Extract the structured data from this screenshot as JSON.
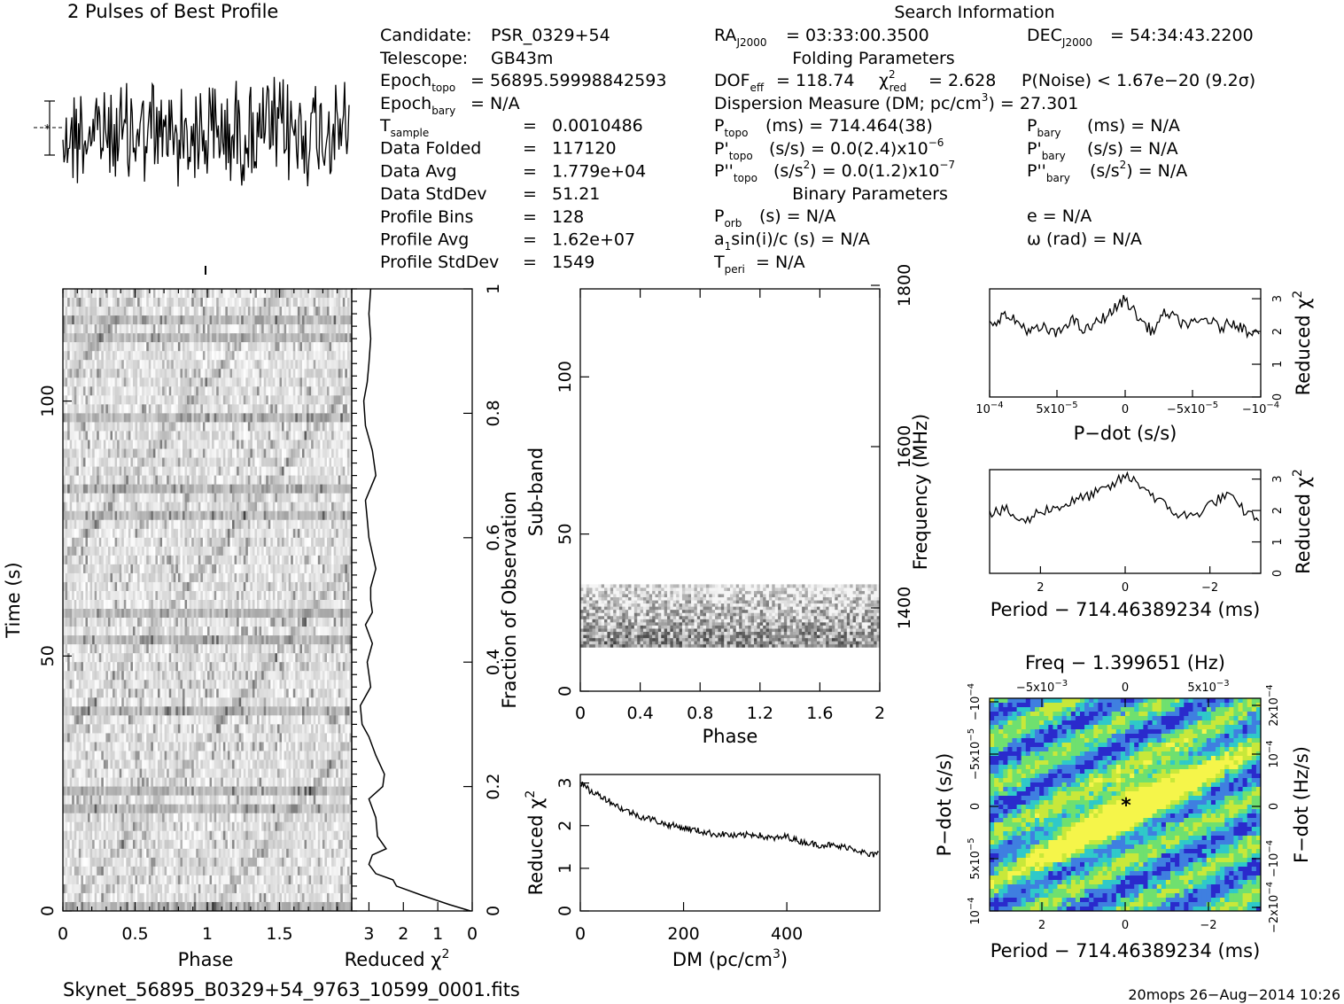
{
  "profile": {
    "title": "2 Pulses of Best Profile"
  },
  "candidate_info": {
    "candidate_label": "Candidate:",
    "candidate": "PSR_0329+54",
    "telescope_label": "Telescope:",
    "telescope": "GB43m",
    "epoch_topo_label": "Epoch",
    "epoch_topo_sub": "topo",
    "epoch_topo": "= 56895.59998842593",
    "epoch_bary_label": "Epoch",
    "epoch_bary_sub": "bary",
    "epoch_bary": "= N/A",
    "rows": [
      {
        "label": "T",
        "sub": "sample",
        "eq": "=",
        "value": "0.0010486"
      },
      {
        "label": "Data Folded",
        "sub": "",
        "eq": "=",
        "value": "117120"
      },
      {
        "label": "Data Avg",
        "sub": "",
        "eq": "=",
        "value": "1.779e+04"
      },
      {
        "label": "Data StdDev",
        "sub": "",
        "eq": "=",
        "value": "51.21"
      },
      {
        "label": "Profile Bins",
        "sub": "",
        "eq": "=",
        "value": "128"
      },
      {
        "label": "Profile Avg",
        "sub": "",
        "eq": "=",
        "value": "1.62e+07"
      },
      {
        "label": "Profile StdDev",
        "sub": "",
        "eq": "=",
        "value": "1549"
      }
    ]
  },
  "search_info": {
    "title": "Search Information",
    "ra_label": "RA",
    "ra_sub": "J2000",
    "ra": "= 03:33:00.3500",
    "dec_label": "DEC",
    "dec_sub": "J2000",
    "dec": "= 54:34:43.2200",
    "folding_title": "Folding Parameters",
    "dof_label": "DOF",
    "dof_sub": "eff",
    "dof": "= 118.74",
    "chi_label": "χ",
    "chi_sup": "2",
    "chi_sub": "red",
    "chi": "= 2.628",
    "pnoise": "P(Noise) < 1.67e−20  (9.2σ)",
    "dm_line_a": "Dispersion Measure (DM; pc/cm",
    "dm_line_sup": "3",
    "dm_line_b": ") = 27.301",
    "p_topo_label": "P",
    "p_topo_sub": "topo",
    "p_topo": "(ms) =  714.464(38)",
    "p_bary_label": "P",
    "p_bary_sub": "bary",
    "p_bary": "(ms) = N/A",
    "pd_topo_label": "P'",
    "pd_topo_sub": "topo",
    "pd_topo": "(s/s) = 0.0(2.4)x10",
    "pd_topo_exp": "−6",
    "pd_bary_label": "P'",
    "pd_bary_sub": "bary",
    "pd_bary": "(s/s) = N/A",
    "pdd_topo_label": "P''",
    "pdd_topo_sub": "topo",
    "pdd_topo_a": "(s/s",
    "pdd_topo_sup": "2",
    "pdd_topo_b": ") = 0.0(1.2)x10",
    "pdd_topo_exp": "−7",
    "pdd_bary_label": "P''",
    "pdd_bary_sub": "bary",
    "pdd_bary_a": "(s/s",
    "pdd_bary_sup": "2",
    "pdd_bary_b": ") = N/A",
    "binary_title": "Binary Parameters",
    "porb_label": "P",
    "porb_sub": "orb",
    "porb": "(s) = N/A",
    "e": "e = N/A",
    "a1_a": "a",
    "a1_sub": "1",
    "a1_b": "sin(i)/c (s) = N/A",
    "omega": "ω (rad) = N/A",
    "tperi_label": "T",
    "tperi_sub": "peri",
    "tperi": "= N/A"
  },
  "footer": {
    "filename": "Skynet_56895_B0329+54_9763_10599_0001.fits",
    "stamp": "20mops 26−Aug−2014 10:26"
  },
  "chart_data": [
    {
      "id": "time-phase",
      "type": "heatmap",
      "xlabel": "Phase",
      "ylabel": "Time (s)",
      "xlim": [
        0,
        2
      ],
      "ylim": [
        0,
        122
      ],
      "xticks": [
        "0",
        "0.5",
        "1",
        "1.5"
      ],
      "yticks": [
        "0",
        "50",
        "100"
      ],
      "colors": "greyscale"
    },
    {
      "id": "time-chi",
      "type": "line",
      "xlabel": "Reduced χ",
      "xlabel_sup": "2",
      "ylabel": "Fraction of Observation",
      "xlim": [
        3.5,
        0
      ],
      "ylim": [
        0,
        1
      ],
      "xticks": [
        "3",
        "2",
        "1",
        "0"
      ],
      "yticks": [
        "0",
        "0.2",
        "0.4",
        "0.6",
        "0.8",
        "1"
      ],
      "x": [
        0.05,
        0.65,
        1.45,
        2.2,
        2.3,
        2.8,
        3.0,
        2.9,
        2.5,
        2.75,
        2.8,
        3.0,
        2.6,
        2.55,
        2.8,
        3.0,
        3.2,
        3.25,
        2.95,
        3.05,
        2.9,
        3.1,
        2.9,
        2.95,
        2.95,
        2.8,
        3.0,
        3.05,
        3.1,
        2.8,
        2.9,
        3.1,
        3.15,
        3.05,
        3.0,
        2.95,
        3.0,
        2.95
      ],
      "y": [
        0.0,
        0.01,
        0.025,
        0.04,
        0.05,
        0.06,
        0.075,
        0.09,
        0.1,
        0.12,
        0.15,
        0.18,
        0.2,
        0.22,
        0.25,
        0.28,
        0.3,
        0.33,
        0.36,
        0.4,
        0.43,
        0.46,
        0.48,
        0.5,
        0.52,
        0.55,
        0.6,
        0.63,
        0.66,
        0.7,
        0.74,
        0.78,
        0.82,
        0.85,
        0.88,
        0.92,
        0.96,
        1.0
      ]
    },
    {
      "id": "subband",
      "type": "heatmap",
      "xlabel": "Phase",
      "ylabel": "Sub-band",
      "y2label": "Frequency (MHz)",
      "xlim": [
        0,
        2
      ],
      "ylim": [
        0,
        128
      ],
      "xticks": [
        "0",
        "0.4",
        "0.8",
        "1.2",
        "1.6",
        "2"
      ],
      "yticks": [
        "0",
        "50",
        "100"
      ],
      "y2ticks": [
        "1400",
        "1600",
        "1800"
      ],
      "band_range": [
        14,
        34
      ],
      "colors": "greyscale"
    },
    {
      "id": "dm-chi",
      "type": "line",
      "xlabel": "DM (pc/cm",
      "xlabel_sup": "3",
      "ylabel": "Reduced χ",
      "ylabel_sup": "2",
      "xlim": [
        0,
        580
      ],
      "ylim": [
        0,
        3.2
      ],
      "xticks": [
        "0",
        "200",
        "400"
      ],
      "yticks": [
        "0",
        "1",
        "2",
        "3"
      ],
      "x": [
        0,
        20,
        40,
        60,
        80,
        100,
        120,
        140,
        160,
        180,
        200,
        220,
        240,
        260,
        280,
        300,
        320,
        340,
        360,
        380,
        400,
        420,
        440,
        460,
        480,
        500,
        520,
        540,
        560,
        580
      ],
      "y": [
        3.0,
        2.8,
        2.7,
        2.55,
        2.4,
        2.3,
        2.2,
        2.15,
        2.05,
        2.0,
        1.95,
        1.9,
        1.85,
        1.8,
        1.8,
        1.75,
        1.78,
        1.8,
        1.72,
        1.7,
        1.75,
        1.65,
        1.6,
        1.55,
        1.55,
        1.5,
        1.5,
        1.42,
        1.3,
        1.35
      ]
    },
    {
      "id": "pdot-chi",
      "type": "line",
      "xlabel": "P−dot (s/s)",
      "ylabel": "Reduced χ",
      "ylabel_sup": "2",
      "xlim": [
        0.0001,
        -0.0001
      ],
      "ylim": [
        0,
        3.3
      ],
      "xticks": [
        "10",
        "5x10",
        "0",
        "−5x10",
        "−10"
      ],
      "xtick_exps": [
        "−4",
        "−5",
        "",
        "−5",
        "−4"
      ],
      "yticks": [
        "0",
        "1",
        "2",
        "3"
      ],
      "x": [
        0.0001,
        9e-05,
        8e-05,
        7e-05,
        6e-05,
        5e-05,
        4e-05,
        3e-05,
        2e-05,
        1e-05,
        0,
        -1e-05,
        -2e-05,
        -3e-05,
        -4e-05,
        -5e-05,
        -6e-05,
        -7e-05,
        -8e-05,
        -9e-05,
        -0.0001
      ],
      "y": [
        2.2,
        2.5,
        2.3,
        2.0,
        2.1,
        1.9,
        2.4,
        2.0,
        2.3,
        2.6,
        3.0,
        2.4,
        2.0,
        2.6,
        2.3,
        2.2,
        2.4,
        2.1,
        2.3,
        2.0,
        2.1
      ]
    },
    {
      "id": "period-chi",
      "type": "line",
      "xlabel": "Period − 714.46389234 (ms)",
      "ylabel": "Reduced χ",
      "ylabel_sup": "2",
      "xlim": [
        3.2,
        -3.2
      ],
      "ylim": [
        0,
        3.3
      ],
      "xticks": [
        "2",
        "0",
        "−2"
      ],
      "yticks": [
        "0",
        "1",
        "2",
        "3"
      ],
      "x": [
        3.2,
        2.8,
        2.4,
        2.0,
        1.6,
        1.2,
        0.8,
        0.4,
        0.0,
        -0.4,
        -0.8,
        -1.2,
        -1.6,
        -2.0,
        -2.4,
        -2.8,
        -3.2
      ],
      "y": [
        1.9,
        2.0,
        1.6,
        2.0,
        2.1,
        2.3,
        2.5,
        2.7,
        3.1,
        2.8,
        2.3,
        1.9,
        1.8,
        2.2,
        2.5,
        2.0,
        1.7
      ]
    },
    {
      "id": "p-pdot",
      "type": "heatmap",
      "title": "Freq − 1.399651 (Hz)",
      "xlabel": "Period − 714.46389234 (ms)",
      "ylabel": "P−dot (s/s)",
      "y2label": "F−dot (Hz/s)",
      "xticks": [
        "2",
        "0",
        "−2"
      ],
      "yticks": [
        "10",
        "5x10",
        "0",
        "−5x10",
        "−10"
      ],
      "ytick_exps": [
        "−4",
        "−5",
        "",
        "−5",
        "−4"
      ],
      "topticks": [
        "−5x10",
        "0",
        "5x10"
      ],
      "toptick_exps": [
        "−3",
        "",
        "−3"
      ],
      "y2ticks": [
        "2x10",
        "10",
        "0",
        "−10",
        "−2x10"
      ],
      "y2tick_exps": [
        "−4",
        "−4",
        "",
        "−4",
        "−4"
      ],
      "best": [
        0,
        0
      ],
      "colors": [
        "#2a2acc",
        "#3f7fe0",
        "#2fc9c9",
        "#6fe06f",
        "#c8e83a",
        "#f5f54a"
      ]
    }
  ]
}
